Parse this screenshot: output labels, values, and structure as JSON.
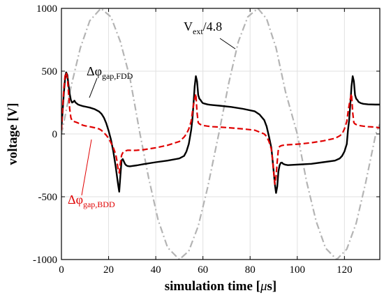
{
  "chart_data": {
    "type": "line",
    "xlabel_main": "simulation time [",
    "xlabel_mu": "μ",
    "xlabel_tail": "s]",
    "ylabel": "voltage [V]",
    "xlim": [
      0,
      135
    ],
    "ylim": [
      -1000,
      1000
    ],
    "x_ticks": [
      "0",
      "20",
      "40",
      "60",
      "80",
      "100",
      "120"
    ],
    "y_ticks": [
      "1000",
      "500",
      "0",
      "-500",
      "-1000"
    ],
    "grid": true,
    "colors": {
      "fdd": "#000000",
      "bdd": "#e00000",
      "vext": "#b4b4b4"
    },
    "annotations": {
      "vext": {
        "main": "V",
        "sub": "ext",
        "tail": "/4.8"
      },
      "fdd": {
        "main": "Δφ",
        "sub": "gap,FDD"
      },
      "bdd": {
        "main": "Δφ",
        "sub": "gap,BDD"
      }
    },
    "series": [
      {
        "key": "vext",
        "style": "dashdot",
        "x": [
          0,
          4,
          8,
          12,
          16.7,
          21,
          25,
          29,
          33.3,
          37,
          41,
          45,
          50,
          54,
          58,
          62,
          66.7,
          71,
          75,
          79,
          83.3,
          87,
          91,
          95,
          100,
          104,
          108,
          112,
          116.7,
          121,
          125,
          129,
          133.3,
          135
        ],
        "y": [
          -3,
          371,
          684,
          901,
          1000,
          932,
          734,
          450,
          2,
          -352,
          -685,
          -904,
          -1000,
          -932,
          -734,
          -426,
          0,
          409,
          734,
          932,
          1000,
          917,
          686,
          336,
          0,
          -383,
          -695,
          -909,
          -1000,
          -917,
          -710,
          -388,
          0,
          80
        ]
      },
      {
        "key": "fdd",
        "style": "solid",
        "x": [
          0,
          0.5,
          1,
          1.5,
          2,
          2.5,
          3,
          3.5,
          4,
          4.5,
          5,
          5.5,
          6,
          7,
          8,
          9,
          10,
          12,
          14,
          16,
          17,
          18,
          19,
          20,
          21,
          22,
          23,
          23.5,
          24,
          24.5,
          25,
          25.5,
          26,
          26.5,
          27,
          27.5,
          28,
          29,
          30,
          32,
          35,
          40,
          45,
          50,
          52,
          53,
          54,
          55,
          55.5,
          56,
          56.5,
          57,
          57.5,
          58,
          58.5,
          59,
          59.5,
          60,
          61,
          62,
          63,
          64,
          67,
          72,
          77,
          82,
          84,
          86,
          87,
          88,
          89,
          89.5,
          90,
          90.5,
          91,
          91.5,
          92,
          92.5,
          93,
          93.5,
          94,
          95,
          96,
          98,
          101,
          106,
          111,
          116,
          118,
          119,
          120,
          121,
          121.5,
          122,
          122.5,
          123,
          123.5,
          124,
          124.5,
          125,
          125.5,
          126,
          127,
          128,
          129,
          130,
          133,
          135
        ],
        "y": [
          50,
          180,
          320,
          430,
          490,
          470,
          390,
          320,
          270,
          250,
          255,
          265,
          250,
          235,
          228,
          222,
          218,
          210,
          198,
          178,
          160,
          130,
          85,
          25,
          -45,
          -140,
          -260,
          -330,
          -400,
          -460,
          -330,
          -210,
          -200,
          -220,
          -240,
          -250,
          -255,
          -258,
          -255,
          -250,
          -240,
          -225,
          -212,
          -195,
          -175,
          -140,
          -80,
          30,
          110,
          240,
          380,
          460,
          420,
          310,
          280,
          270,
          255,
          245,
          240,
          235,
          232,
          230,
          225,
          215,
          200,
          180,
          155,
          110,
          60,
          -20,
          -110,
          -200,
          -300,
          -400,
          -470,
          -420,
          -300,
          -250,
          -230,
          -228,
          -238,
          -245,
          -248,
          -246,
          -243,
          -238,
          -225,
          -212,
          -195,
          -175,
          -140,
          -80,
          30,
          110,
          240,
          380,
          460,
          420,
          310,
          280,
          270,
          255,
          245,
          240,
          238,
          236,
          234,
          234
        ]
      },
      {
        "key": "bdd",
        "style": "dashed",
        "x": [
          0,
          0.5,
          1,
          1.5,
          2,
          2.5,
          3,
          3.5,
          4,
          4.5,
          5,
          5.5,
          6,
          7,
          8,
          9,
          10,
          12,
          14,
          16,
          17,
          18,
          19,
          20,
          21,
          22,
          23,
          23.5,
          24,
          24.5,
          25,
          25.5,
          26,
          26.5,
          27,
          28,
          29,
          30,
          32,
          35,
          40,
          45,
          50,
          52,
          53,
          54,
          55,
          55.5,
          56,
          56.5,
          57,
          57.5,
          58,
          58.5,
          59,
          59.5,
          60,
          61,
          62,
          63,
          64,
          67,
          72,
          77,
          82,
          84,
          86,
          87,
          88,
          89,
          89.5,
          90,
          90.5,
          91,
          91.5,
          92,
          92.5,
          93,
          93.5,
          94,
          95,
          96,
          98,
          101,
          106,
          111,
          116,
          118,
          119,
          120,
          121,
          121.5,
          122,
          122.5,
          123,
          123.5,
          124,
          124.5,
          125,
          125.5,
          126,
          127,
          128,
          129,
          130,
          133,
          135
        ],
        "y": [
          30,
          200,
          360,
          460,
          490,
          450,
          330,
          200,
          130,
          105,
          100,
          98,
          95,
          88,
          78,
          70,
          65,
          58,
          50,
          40,
          28,
          10,
          -10,
          -35,
          -70,
          -110,
          -160,
          -210,
          -280,
          -310,
          -230,
          -170,
          -150,
          -140,
          -135,
          -130,
          -130,
          -132,
          -130,
          -125,
          -110,
          -90,
          -60,
          -25,
          0,
          40,
          100,
          170,
          230,
          280,
          320,
          170,
          90,
          80,
          75,
          72,
          68,
          65,
          62,
          60,
          58,
          55,
          48,
          40,
          30,
          15,
          0,
          -20,
          -60,
          -120,
          -200,
          -300,
          -400,
          -340,
          -220,
          -120,
          -100,
          -95,
          -92,
          -90,
          -88,
          -86,
          -84,
          -80,
          -70,
          -55,
          -35,
          -15,
          0,
          40,
          100,
          170,
          230,
          280,
          320,
          170,
          90,
          80,
          75,
          72,
          68,
          65,
          62,
          60,
          58,
          55,
          48
        ]
      }
    ]
  }
}
